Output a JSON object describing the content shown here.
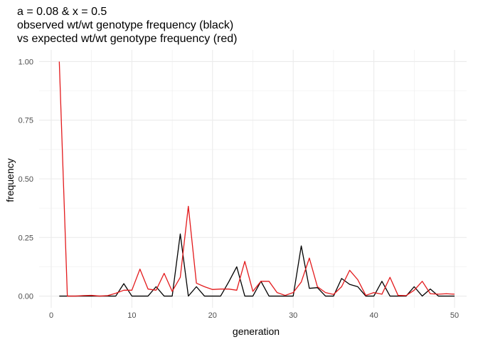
{
  "chart_data": {
    "type": "line",
    "title_lines": [
      "a = 0.08 & x = 0.5",
      "observed wt/wt genotype frequency (black)",
      "vs expected wt/wt genotype frequency (red)"
    ],
    "xlabel": "generation",
    "ylabel": "frequency",
    "xlim": [
      -1.5,
      51.5
    ],
    "ylim": [
      -0.05,
      1.05
    ],
    "x_ticks": [
      0,
      10,
      20,
      30,
      40,
      50
    ],
    "x_tick_labels": [
      "0",
      "10",
      "20",
      "30",
      "40",
      "50"
    ],
    "y_ticks": [
      0,
      0.25,
      0.5,
      0.75,
      1
    ],
    "y_tick_labels": [
      "0.00",
      "0.25",
      "0.50",
      "0.75",
      "1.00"
    ],
    "grid": true,
    "x": [
      1,
      2,
      3,
      4,
      5,
      6,
      7,
      8,
      9,
      10,
      11,
      12,
      13,
      14,
      15,
      16,
      17,
      18,
      19,
      20,
      21,
      22,
      23,
      24,
      25,
      26,
      27,
      28,
      29,
      30,
      31,
      32,
      33,
      34,
      35,
      36,
      37,
      38,
      39,
      40,
      41,
      42,
      43,
      44,
      45,
      46,
      47,
      48,
      49,
      50
    ],
    "series": [
      {
        "color": "#000000",
        "values": [
          0,
          0,
          0,
          0,
          0,
          0,
          0,
          0,
          0.053,
          0,
          0,
          0,
          0.04,
          0,
          0,
          0.265,
          0,
          0.04,
          0,
          0,
          0,
          0.06,
          0.125,
          0,
          0,
          0.063,
          0,
          0,
          0,
          0,
          0.214,
          0.033,
          0.036,
          0,
          0,
          0.075,
          0.05,
          0.04,
          0,
          0,
          0.063,
          0,
          0,
          0,
          0.04,
          0,
          0.03,
          0,
          0,
          0
        ]
      },
      {
        "color": "#e31a1c",
        "values": [
          1.0,
          0,
          0,
          0.002,
          0.003,
          0,
          0.002,
          0.012,
          0.025,
          0.025,
          0.115,
          0.03,
          0.025,
          0.097,
          0.02,
          0.08,
          0.383,
          0.055,
          0.04,
          0.028,
          0.03,
          0.03,
          0.025,
          0.148,
          0.02,
          0.063,
          0.063,
          0.015,
          0.003,
          0.015,
          0.06,
          0.162,
          0.04,
          0.015,
          0.007,
          0.04,
          0.11,
          0.07,
          0.003,
          0.015,
          0.008,
          0.08,
          0.003,
          0.002,
          0.025,
          0.063,
          0.01,
          0.008,
          0.01,
          0.008
        ]
      }
    ]
  }
}
